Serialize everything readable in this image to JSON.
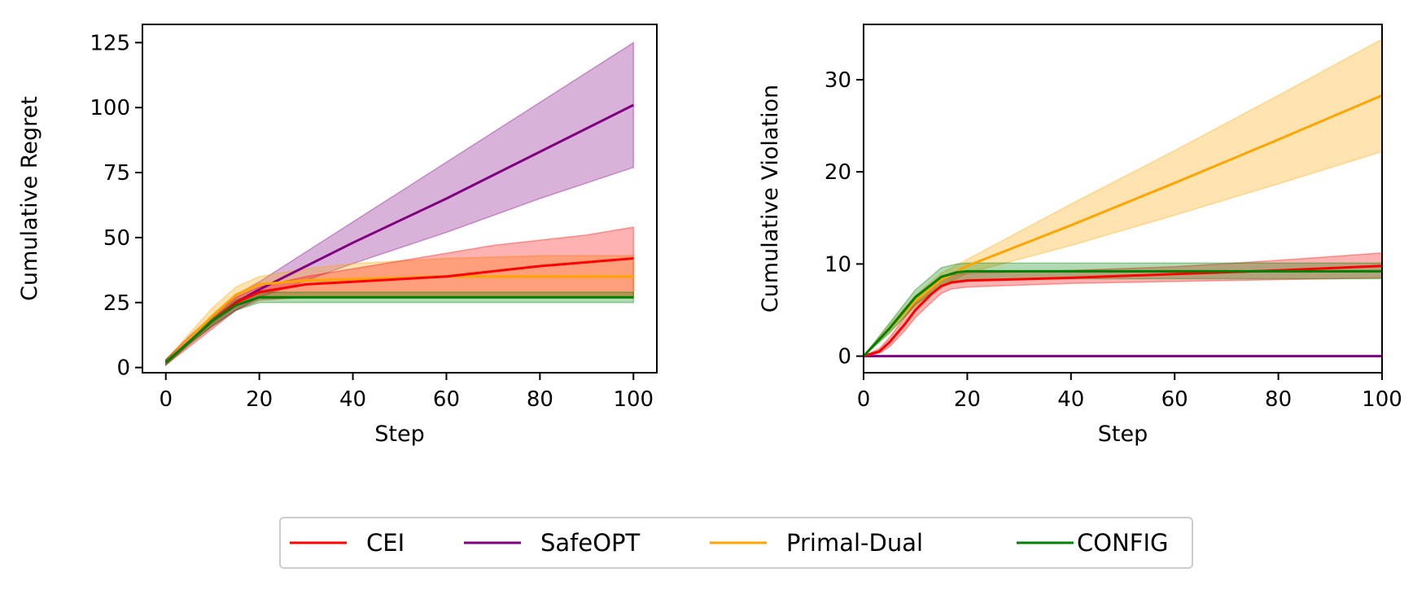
{
  "chart_data": [
    {
      "type": "line",
      "xlabel": "Step",
      "ylabel": "Cumulative Regret",
      "xlim": [
        -5,
        105
      ],
      "ylim": [
        -2,
        132
      ],
      "xticks": [
        0,
        20,
        40,
        60,
        80,
        100
      ],
      "yticks": [
        0,
        25,
        50,
        75,
        100,
        125
      ],
      "grid": false,
      "series": [
        {
          "name": "CEI",
          "color": "#ff0000",
          "x": [
            0,
            5,
            10,
            15,
            20,
            30,
            40,
            50,
            60,
            70,
            80,
            90,
            100
          ],
          "y": [
            2,
            10,
            18,
            25,
            29,
            32,
            33,
            34,
            35,
            37,
            39,
            40.5,
            42
          ],
          "lower": [
            1,
            8,
            15,
            22,
            26,
            27,
            27,
            27,
            27,
            27,
            27,
            27,
            27
          ],
          "upper": [
            3,
            12,
            20,
            27,
            31,
            35,
            38,
            41,
            44,
            47,
            49,
            51,
            54
          ]
        },
        {
          "name": "SafeOPT",
          "color": "#800080",
          "x": [
            0,
            5,
            10,
            15,
            20,
            40,
            60,
            80,
            100
          ],
          "y": [
            2,
            10,
            18,
            25,
            30,
            48,
            65,
            83,
            101
          ],
          "lower": [
            1,
            9,
            16,
            22,
            27,
            40,
            52,
            65,
            77
          ],
          "upper": [
            3,
            11,
            20,
            28,
            33,
            56,
            79,
            102,
            125
          ]
        },
        {
          "name": "Primal-Dual",
          "color": "#ffa500",
          "x": [
            0,
            5,
            10,
            15,
            20,
            30,
            40,
            60,
            80,
            100
          ],
          "y": [
            2,
            11,
            20,
            28,
            32,
            33.5,
            34,
            35,
            35,
            35
          ],
          "lower": [
            1,
            9,
            17,
            24,
            27,
            27,
            27,
            27,
            27,
            27
          ],
          "upper": [
            3,
            13,
            23,
            31,
            35,
            38,
            40,
            42,
            43,
            43
          ]
        },
        {
          "name": "CONFIG",
          "color": "#008000",
          "x": [
            0,
            5,
            10,
            15,
            20,
            40,
            60,
            80,
            100
          ],
          "y": [
            2,
            10,
            18,
            24,
            27,
            27,
            27,
            27,
            27
          ],
          "lower": [
            1,
            9,
            16,
            22,
            25,
            25,
            25,
            25,
            25
          ],
          "upper": [
            3,
            11,
            19,
            26,
            29,
            29,
            29,
            29,
            29
          ]
        }
      ]
    },
    {
      "type": "line",
      "xlabel": "Step",
      "ylabel": "Cumulative Violation",
      "xlim": [
        0,
        100
      ],
      "ylim": [
        -1.8,
        36
      ],
      "xticks": [
        0,
        20,
        40,
        60,
        80,
        100
      ],
      "yticks": [
        0,
        10,
        20,
        30
      ],
      "grid": false,
      "series": [
        {
          "name": "CEI",
          "color": "#ff0000",
          "x": [
            0,
            3,
            5,
            8,
            10,
            13,
            15,
            17,
            20,
            40,
            60,
            80,
            100
          ],
          "y": [
            0,
            0.5,
            1.5,
            3.5,
            5,
            6.7,
            7.6,
            8,
            8.2,
            8.5,
            8.9,
            9.3,
            9.8
          ],
          "lower": [
            0,
            0.3,
            1,
            2.8,
            4.2,
            5.8,
            6.8,
            7.3,
            7.5,
            7.9,
            8.1,
            8.3,
            8.5
          ],
          "upper": [
            0,
            0.8,
            2,
            4.3,
            5.8,
            7.6,
            8.5,
            8.8,
            9,
            9.3,
            9.7,
            10.4,
            11.2
          ]
        },
        {
          "name": "SafeOPT",
          "color": "#800080",
          "x": [
            0,
            100
          ],
          "y": [
            0,
            0
          ],
          "lower": [
            0,
            0
          ],
          "upper": [
            0,
            0
          ]
        },
        {
          "name": "Primal-Dual",
          "color": "#ffa500",
          "x": [
            0,
            5,
            10,
            15,
            20,
            40,
            60,
            80,
            100
          ],
          "y": [
            0,
            3,
            6,
            8.3,
            9.8,
            14.2,
            18.8,
            23.5,
            28.3
          ],
          "lower": [
            0,
            2.6,
            5.4,
            7.6,
            9,
            12,
            15.3,
            18.7,
            22.2
          ],
          "upper": [
            0,
            3.4,
            6.6,
            9,
            10.5,
            16.5,
            22.3,
            28.3,
            34.4
          ]
        },
        {
          "name": "CONFIG",
          "color": "#008000",
          "x": [
            0,
            5,
            10,
            15,
            18,
            20,
            40,
            60,
            80,
            100
          ],
          "y": [
            0,
            3,
            6.4,
            8.6,
            9.1,
            9.2,
            9.2,
            9.2,
            9.2,
            9.2
          ],
          "lower": [
            0,
            2.5,
            5.6,
            7.6,
            8.1,
            8.3,
            8.4,
            8.4,
            8.4,
            8.4
          ],
          "upper": [
            0,
            3.6,
            7.2,
            9.6,
            10,
            10.1,
            10.1,
            10.1,
            10.1,
            10.1
          ]
        }
      ]
    }
  ],
  "legend": {
    "placement": "bottom-center",
    "items": [
      {
        "label": "CEI",
        "color": "#ff0000"
      },
      {
        "label": "SafeOPT",
        "color": "#800080"
      },
      {
        "label": "Primal-Dual",
        "color": "#ffa500"
      },
      {
        "label": "CONFIG",
        "color": "#008000"
      }
    ]
  }
}
